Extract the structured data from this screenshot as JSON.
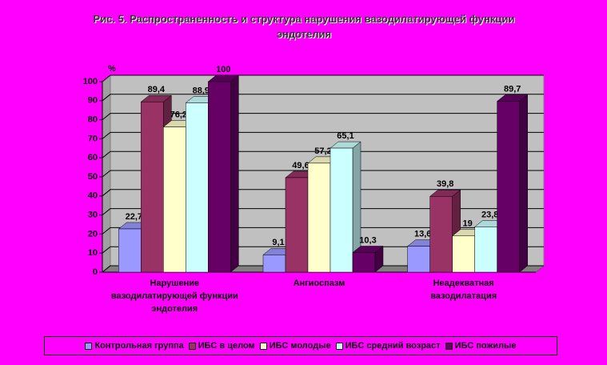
{
  "chart_data": {
    "type": "bar3d",
    "title": "Рис. 5. Распространенность и структура нарушения вазодилатирующей функции эндотелия",
    "y_label": "%",
    "categories": [
      "Нарушение вазодилатирующей функции эндотелия",
      "Ангиоспазм",
      "Неадекватная вазодилатация"
    ],
    "series": [
      {
        "name": "Контрольная группа",
        "color": "#9999ff",
        "values": [
          22.7,
          9.1,
          13.6
        ],
        "value_labels": [
          "22,7",
          "9,1",
          "13,6"
        ]
      },
      {
        "name": "ИБС в целом",
        "color": "#993366",
        "values": [
          89.4,
          49.6,
          39.8
        ],
        "value_labels": [
          "89,4",
          "49,6",
          "39,8"
        ]
      },
      {
        "name": "ИБС молодые",
        "color": "#ffffcc",
        "values": [
          76.2,
          57.2,
          19
        ],
        "value_labels": [
          "76,2",
          "57,2",
          "19"
        ]
      },
      {
        "name": "ИБС средний возраст",
        "color": "#ccffff",
        "values": [
          88.9,
          65.1,
          23.8
        ],
        "value_labels": [
          "88,9",
          "65,1",
          "23,8"
        ]
      },
      {
        "name": "ИБС пожилые",
        "color": "#660066",
        "values": [
          100,
          10.3,
          89.7
        ],
        "value_labels": [
          "100",
          "10,3",
          "89,7"
        ]
      }
    ],
    "ylim": [
      0,
      100
    ],
    "yticks": [
      0,
      10,
      20,
      30,
      40,
      50,
      60,
      70,
      80,
      90,
      100
    ],
    "grid": true,
    "legend": "bottom"
  }
}
